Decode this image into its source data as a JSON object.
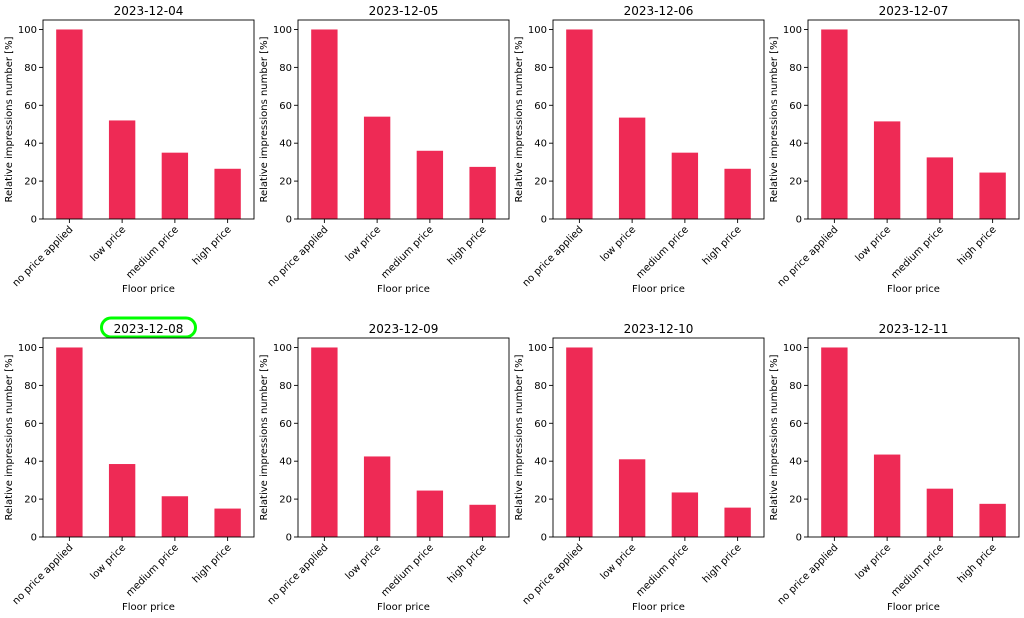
{
  "chart_data": [
    {
      "type": "bar",
      "title": "2023-12-04",
      "xlabel": "Floor price",
      "ylabel": "Relative impressions number [%]",
      "categories": [
        "no price applied",
        "low price",
        "medium price",
        "high price"
      ],
      "values": [
        100,
        52,
        35,
        26.5
      ],
      "ylim": [
        0,
        105
      ],
      "yticks": [
        0,
        20,
        40,
        60,
        80,
        100
      ]
    },
    {
      "type": "bar",
      "title": "2023-12-05",
      "xlabel": "Floor price",
      "ylabel": "Relative impressions number [%]",
      "categories": [
        "no price applied",
        "low price",
        "medium price",
        "high price"
      ],
      "values": [
        100,
        54,
        36,
        27.5
      ],
      "ylim": [
        0,
        105
      ],
      "yticks": [
        0,
        20,
        40,
        60,
        80,
        100
      ]
    },
    {
      "type": "bar",
      "title": "2023-12-06",
      "xlabel": "Floor price",
      "ylabel": "Relative impressions number [%]",
      "categories": [
        "no price applied",
        "low price",
        "medium price",
        "high price"
      ],
      "values": [
        100,
        53.5,
        35,
        26.5
      ],
      "ylim": [
        0,
        105
      ],
      "yticks": [
        0,
        20,
        40,
        60,
        80,
        100
      ]
    },
    {
      "type": "bar",
      "title": "2023-12-07",
      "xlabel": "Floor price",
      "ylabel": "Relative impressions number [%]",
      "categories": [
        "no price applied",
        "low price",
        "medium price",
        "high price"
      ],
      "values": [
        100,
        51.5,
        32.5,
        24.5
      ],
      "ylim": [
        0,
        105
      ],
      "yticks": [
        0,
        20,
        40,
        60,
        80,
        100
      ]
    },
    {
      "type": "bar",
      "title": "2023-12-08",
      "xlabel": "Floor price",
      "ylabel": "Relative impressions number [%]",
      "categories": [
        "no price applied",
        "low price",
        "medium price",
        "high price"
      ],
      "values": [
        100,
        38.5,
        21.5,
        15
      ],
      "ylim": [
        0,
        105
      ],
      "yticks": [
        0,
        20,
        40,
        60,
        80,
        100
      ],
      "highlighted_title": true
    },
    {
      "type": "bar",
      "title": "2023-12-09",
      "xlabel": "Floor price",
      "ylabel": "Relative impressions number [%]",
      "categories": [
        "no price applied",
        "low price",
        "medium price",
        "high price"
      ],
      "values": [
        100,
        42.5,
        24.5,
        17
      ],
      "ylim": [
        0,
        105
      ],
      "yticks": [
        0,
        20,
        40,
        60,
        80,
        100
      ]
    },
    {
      "type": "bar",
      "title": "2023-12-10",
      "xlabel": "Floor price",
      "ylabel": "Relative impressions number [%]",
      "categories": [
        "no price applied",
        "low price",
        "medium price",
        "high price"
      ],
      "values": [
        100,
        41,
        23.5,
        15.5
      ],
      "ylim": [
        0,
        105
      ],
      "yticks": [
        0,
        20,
        40,
        60,
        80,
        100
      ]
    },
    {
      "type": "bar",
      "title": "2023-12-11",
      "xlabel": "Floor price",
      "ylabel": "Relative impressions number [%]",
      "categories": [
        "no price applied",
        "low price",
        "medium price",
        "high price"
      ],
      "values": [
        100,
        43.5,
        25.5,
        17.5
      ],
      "ylim": [
        0,
        105
      ],
      "yticks": [
        0,
        20,
        40,
        60,
        80,
        100
      ]
    }
  ],
  "colors": {
    "bar": "#ee2a55",
    "highlight": "#00ff00",
    "axis": "#000000"
  }
}
